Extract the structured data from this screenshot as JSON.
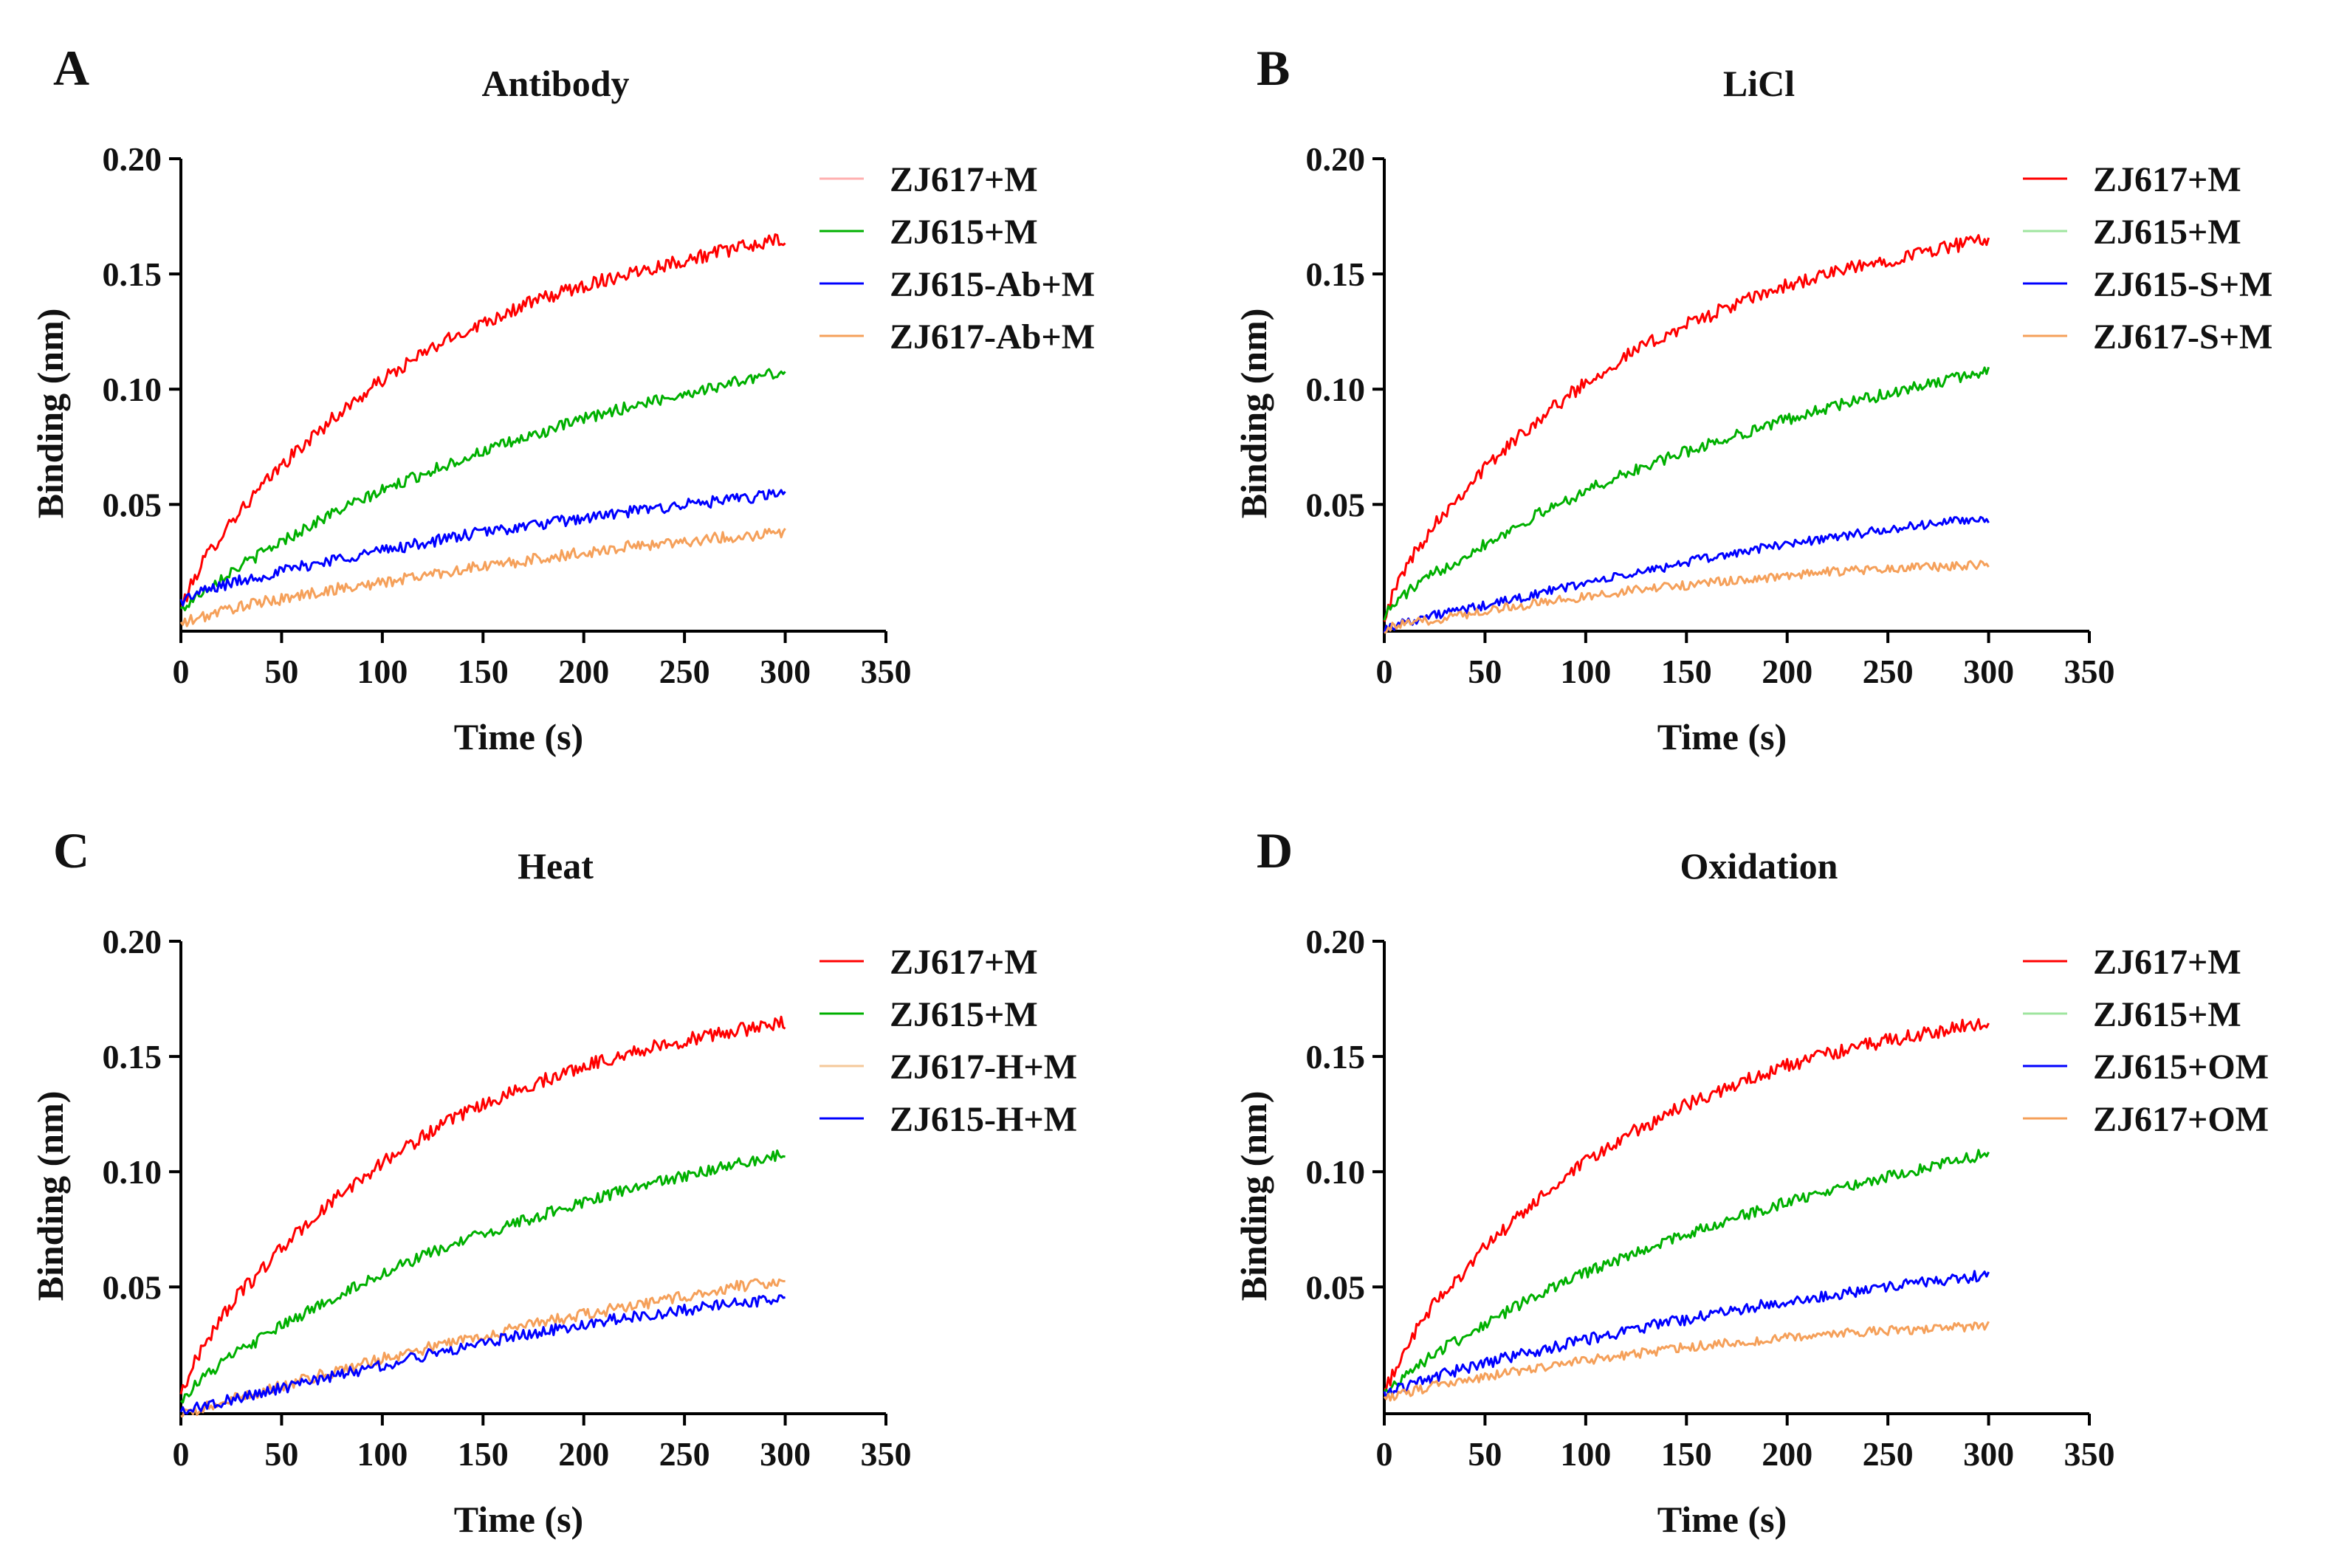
{
  "chart_data": [
    {
      "panel_letter": "A",
      "type": "line",
      "title": "Antibody",
      "xlabel": "Time (s)",
      "ylabel": "Binding (nm)",
      "xlim": [
        0,
        350
      ],
      "ylim": [
        -0.005,
        0.2
      ],
      "x_ticks": [
        0,
        50,
        100,
        150,
        200,
        250,
        300,
        350
      ],
      "y_ticks": [
        0.05,
        0.1,
        0.15,
        0.2
      ],
      "y_tick_labels": [
        "0.05",
        "0.10",
        "0.15",
        "0.20"
      ],
      "x": [
        0,
        10,
        25,
        50,
        75,
        100,
        125,
        150,
        175,
        200,
        225,
        250,
        275,
        300
      ],
      "legend_position": "top-right",
      "series": [
        {
          "name": "ZJ617+M",
          "color": "#ff0000",
          "legend_color": "#ffb0b0",
          "noise": 0.003,
          "values": [
            0.005,
            0.024,
            0.043,
            0.067,
            0.087,
            0.104,
            0.118,
            0.129,
            0.138,
            0.145,
            0.151,
            0.156,
            0.161,
            0.165
          ]
        },
        {
          "name": "ZJ615+M",
          "color": "#00b000",
          "legend_color": "#00b000",
          "noise": 0.0025,
          "values": [
            0.004,
            0.012,
            0.021,
            0.034,
            0.046,
            0.056,
            0.065,
            0.073,
            0.08,
            0.087,
            0.093,
            0.098,
            0.103,
            0.108
          ]
        },
        {
          "name": "ZJ615-Ab+M",
          "color": "#0000ff",
          "legend_color": "#0000ff",
          "noise": 0.0025,
          "values": [
            0.008,
            0.012,
            0.016,
            0.021,
            0.026,
            0.03,
            0.034,
            0.038,
            0.041,
            0.044,
            0.047,
            0.05,
            0.052,
            0.055
          ]
        },
        {
          "name": "ZJ617-Ab+M",
          "color": "#f5a05a",
          "legend_color": "#f5a05a",
          "noise": 0.0025,
          "values": [
            -0.002,
            0.001,
            0.005,
            0.009,
            0.013,
            0.016,
            0.02,
            0.023,
            0.026,
            0.029,
            0.032,
            0.034,
            0.036,
            0.038
          ]
        }
      ]
    },
    {
      "panel_letter": "B",
      "type": "line",
      "title": "LiCl",
      "xlabel": "Time (s)",
      "ylabel": "Binding (nm)",
      "xlim": [
        0,
        350
      ],
      "ylim": [
        -0.005,
        0.2
      ],
      "x_ticks": [
        0,
        50,
        100,
        150,
        200,
        250,
        300,
        350
      ],
      "y_ticks": [
        0.05,
        0.1,
        0.15,
        0.2
      ],
      "y_tick_labels": [
        "0.05",
        "0.10",
        "0.15",
        "0.20"
      ],
      "x": [
        0,
        10,
        25,
        50,
        75,
        100,
        125,
        150,
        175,
        200,
        225,
        250,
        275,
        300
      ],
      "legend_position": "top-right",
      "series": [
        {
          "name": "ZJ617+M",
          "color": "#ff0000",
          "legend_color": "#ff0000",
          "noise": 0.003,
          "values": [
            0.002,
            0.022,
            0.042,
            0.066,
            0.086,
            0.103,
            0.117,
            0.128,
            0.137,
            0.145,
            0.151,
            0.156,
            0.161,
            0.165
          ]
        },
        {
          "name": "ZJ615+M",
          "color": "#00b000",
          "legend_color": "#9fe59f",
          "noise": 0.0025,
          "values": [
            0.002,
            0.011,
            0.02,
            0.033,
            0.045,
            0.056,
            0.065,
            0.073,
            0.08,
            0.087,
            0.093,
            0.098,
            0.103,
            0.108
          ]
        },
        {
          "name": "ZJ615-S+M",
          "color": "#0000ff",
          "legend_color": "#0000ff",
          "noise": 0.002,
          "values": [
            -0.004,
            -0.001,
            0.002,
            0.006,
            0.011,
            0.016,
            0.02,
            0.025,
            0.029,
            0.033,
            0.036,
            0.039,
            0.042,
            0.044
          ]
        },
        {
          "name": "ZJ617-S+M",
          "color": "#f5a05a",
          "legend_color": "#f5a05a",
          "noise": 0.002,
          "values": [
            -0.004,
            -0.002,
            0.0,
            0.004,
            0.007,
            0.01,
            0.013,
            0.015,
            0.017,
            0.019,
            0.021,
            0.022,
            0.023,
            0.024
          ]
        }
      ]
    },
    {
      "panel_letter": "C",
      "type": "line",
      "title": "Heat",
      "xlabel": "Time (s)",
      "ylabel": "Binding (nm)",
      "xlim": [
        0,
        350
      ],
      "ylim": [
        -0.005,
        0.2
      ],
      "x_ticks": [
        0,
        50,
        100,
        150,
        200,
        250,
        300,
        350
      ],
      "y_ticks": [
        0.05,
        0.1,
        0.15,
        0.2
      ],
      "y_tick_labels": [
        "0.05",
        "0.10",
        "0.15",
        "0.20"
      ],
      "x": [
        0,
        10,
        25,
        50,
        75,
        100,
        125,
        150,
        175,
        200,
        225,
        250,
        275,
        300
      ],
      "legend_position": "top-right",
      "series": [
        {
          "name": "ZJ617+M",
          "color": "#ff0000",
          "legend_color": "#ff0000",
          "noise": 0.003,
          "values": [
            0.004,
            0.023,
            0.043,
            0.067,
            0.087,
            0.104,
            0.118,
            0.129,
            0.138,
            0.146,
            0.152,
            0.157,
            0.161,
            0.165
          ]
        },
        {
          "name": "ZJ615+M",
          "color": "#00b000",
          "legend_color": "#00b000",
          "noise": 0.0025,
          "values": [
            0.001,
            0.01,
            0.02,
            0.033,
            0.045,
            0.056,
            0.065,
            0.073,
            0.08,
            0.087,
            0.093,
            0.098,
            0.103,
            0.108
          ]
        },
        {
          "name": "ZJ617-H+M",
          "color": "#f5a05a",
          "legend_color": "#f5c89a",
          "noise": 0.0025,
          "values": [
            -0.006,
            -0.003,
            0.001,
            0.007,
            0.013,
            0.019,
            0.024,
            0.029,
            0.034,
            0.038,
            0.042,
            0.046,
            0.05,
            0.053
          ]
        },
        {
          "name": "ZJ615-H+M",
          "color": "#0000ff",
          "legend_color": "#0000ff",
          "noise": 0.0025,
          "values": [
            -0.004,
            -0.002,
            0.001,
            0.006,
            0.011,
            0.016,
            0.021,
            0.026,
            0.03,
            0.034,
            0.037,
            0.04,
            0.043,
            0.045
          ]
        }
      ]
    },
    {
      "panel_letter": "D",
      "type": "line",
      "title": "Oxidation",
      "xlabel": "Time (s)",
      "ylabel": "Binding (nm)",
      "xlim": [
        0,
        350
      ],
      "ylim": [
        -0.005,
        0.2
      ],
      "x_ticks": [
        0,
        50,
        100,
        150,
        200,
        250,
        300,
        350
      ],
      "y_ticks": [
        0.05,
        0.1,
        0.15,
        0.2
      ],
      "y_tick_labels": [
        "0.05",
        "0.10",
        "0.15",
        "0.20"
      ],
      "x": [
        0,
        10,
        25,
        50,
        75,
        100,
        125,
        150,
        175,
        200,
        225,
        250,
        275,
        300
      ],
      "legend_position": "top-right",
      "series": [
        {
          "name": "ZJ617+M",
          "color": "#ff0000",
          "legend_color": "#ff0000",
          "noise": 0.003,
          "values": [
            0.004,
            0.023,
            0.043,
            0.067,
            0.087,
            0.104,
            0.118,
            0.129,
            0.138,
            0.146,
            0.152,
            0.157,
            0.161,
            0.165
          ]
        },
        {
          "name": "ZJ615+M",
          "color": "#00b000",
          "legend_color": "#9fe59f",
          "noise": 0.0025,
          "values": [
            0.003,
            0.012,
            0.021,
            0.034,
            0.046,
            0.056,
            0.065,
            0.073,
            0.08,
            0.087,
            0.093,
            0.098,
            0.103,
            0.108
          ]
        },
        {
          "name": "ZJ615+OM",
          "color": "#0000ff",
          "legend_color": "#0000ff",
          "noise": 0.0025,
          "values": [
            0.003,
            0.007,
            0.011,
            0.017,
            0.022,
            0.027,
            0.032,
            0.036,
            0.04,
            0.044,
            0.047,
            0.05,
            0.053,
            0.055
          ]
        },
        {
          "name": "ZJ617+OM",
          "color": "#f5a05a",
          "legend_color": "#f5a05a",
          "noise": 0.002,
          "values": [
            0.001,
            0.004,
            0.007,
            0.011,
            0.015,
            0.018,
            0.021,
            0.024,
            0.026,
            0.028,
            0.03,
            0.031,
            0.032,
            0.033
          ]
        }
      ]
    }
  ]
}
